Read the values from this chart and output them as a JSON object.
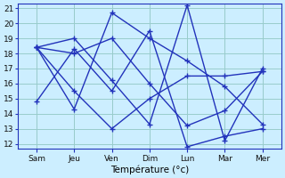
{
  "x_labels": [
    "Sam",
    "Jeu",
    "Ven",
    "Dim",
    "Lun",
    "Mar",
    "Mer"
  ],
  "x_positions": [
    0,
    1,
    2,
    3,
    4,
    5,
    6
  ],
  "series": [
    [
      14.8,
      18.3,
      15.5,
      19.5,
      11.8,
      12.5,
      13.0
    ],
    [
      18.4,
      18.0,
      19.0,
      16.0,
      13.2,
      14.2,
      16.8
    ],
    [
      18.4,
      15.5,
      13.0,
      15.0,
      16.5,
      16.5,
      16.8
    ],
    [
      18.4,
      19.0,
      16.2,
      13.3,
      21.2,
      12.2,
      17.0
    ],
    [
      18.4,
      14.3,
      20.7,
      19.0,
      17.5,
      15.8,
      13.3
    ]
  ],
  "line_color": "#2233bb",
  "bg_color": "#cceeff",
  "grid_color": "#99cccc",
  "xlabel": "Température (°c)",
  "ylim": [
    12,
    21
  ],
  "yticks": [
    12,
    13,
    14,
    15,
    16,
    17,
    18,
    19,
    20,
    21
  ],
  "marker": "+",
  "markersize": 4,
  "linewidth": 1.0,
  "tick_fontsize": 6.5,
  "xlabel_fontsize": 7.5
}
